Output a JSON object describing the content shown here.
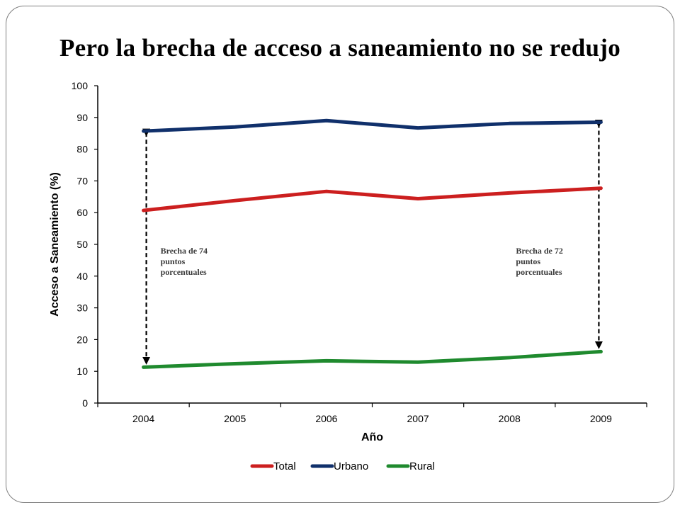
{
  "title": "Pero la brecha de acceso a saneamiento no se redujo",
  "chart_data": {
    "type": "line",
    "x": [
      "2004",
      "2005",
      "2006",
      "2007",
      "2008",
      "2009"
    ],
    "xlabel": "Año",
    "ylabel": "Acceso a Saneamiento (%)",
    "ylim": [
      0,
      100
    ],
    "yticks": [
      0,
      10,
      20,
      30,
      40,
      50,
      60,
      70,
      80,
      90,
      100
    ],
    "grid": false,
    "legend_position": "bottom",
    "series": [
      {
        "name": "Total",
        "color": "#cc1f1f",
        "values": [
          60.7,
          63.8,
          66.7,
          64.4,
          66.2,
          67.7
        ]
      },
      {
        "name": "Urbano",
        "color": "#10306b",
        "values": [
          85.7,
          87.0,
          89.0,
          86.7,
          88.1,
          88.5
        ]
      },
      {
        "name": "Rural",
        "color": "#1f8a2e",
        "values": [
          11.3,
          12.4,
          13.3,
          12.9,
          14.3,
          16.2
        ]
      }
    ],
    "annotations": [
      {
        "x": "2004",
        "from": 85.7,
        "to": 11.3,
        "lines": [
          "Brecha de 74",
          "puntos",
          "porcentuales"
        ]
      },
      {
        "x": "2009",
        "from": 88.5,
        "to": 16.2,
        "lines": [
          "Brecha de 72",
          "puntos",
          "porcentuales"
        ]
      }
    ]
  }
}
